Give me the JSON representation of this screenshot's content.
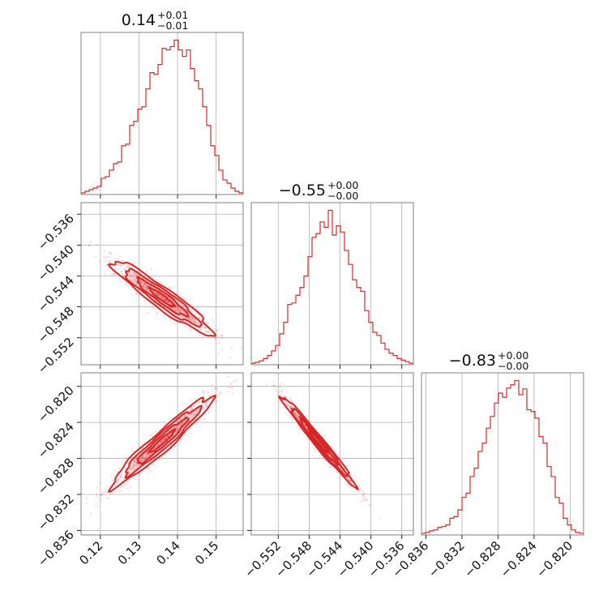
{
  "color": "#d62728",
  "titles": [
    {
      "value": "0.14",
      "upper": "+0.01",
      "lower": "−0.01"
    },
    {
      "value": "−0.55",
      "upper": "+0.00",
      "lower": "−0.00"
    },
    {
      "value": "−0.83",
      "upper": "+0.00",
      "lower": "−0.00"
    }
  ],
  "chart_data": {
    "type": "corner",
    "parameters": [
      {
        "range": [
          0.115,
          0.157
        ],
        "ticks": [
          0.12,
          0.13,
          0.14,
          0.15
        ],
        "tick_labels": [
          "0.12",
          "0.13",
          "0.14",
          "0.15"
        ],
        "mean": 0.136,
        "sd": 0.0065
      },
      {
        "range": [
          -0.5555,
          -0.5345
        ],
        "ticks": [
          -0.552,
          -0.548,
          -0.544,
          -0.54,
          -0.536
        ],
        "tick_labels": [
          "−0.552",
          "−0.548",
          "−0.544",
          "−0.540",
          "−0.536"
        ],
        "mean": -0.5468,
        "sd": 0.0024
      },
      {
        "range": [
          -0.8365,
          -0.8185
        ],
        "ticks": [
          -0.836,
          -0.832,
          -0.828,
          -0.824,
          -0.82
        ],
        "tick_labels": [
          "−0.836",
          "−0.832",
          "−0.828",
          "−0.824",
          "−0.820"
        ],
        "mean": -0.8261,
        "sd": 0.0025
      }
    ],
    "histograms": [
      {
        "bins": 40,
        "counts": [
          2,
          4,
          6,
          8,
          10,
          20,
          22,
          30,
          38,
          40,
          60,
          62,
          85,
          90,
          105,
          108,
          130,
          150,
          148,
          160,
          180,
          178,
          182,
          190,
          178,
          170,
          178,
          155,
          140,
          130,
          108,
          85,
          60,
          48,
          30,
          18,
          14,
          8,
          4,
          2
        ]
      },
      {
        "bins": 40,
        "counts": [
          2,
          3,
          5,
          8,
          12,
          18,
          25,
          40,
          55,
          78,
          80,
          90,
          100,
          115,
          140,
          165,
          170,
          185,
          178,
          200,
          168,
          180,
          172,
          148,
          130,
          110,
          100,
          95,
          70,
          55,
          42,
          38,
          28,
          20,
          15,
          12,
          8,
          6,
          4,
          2
        ]
      },
      {
        "bins": 40,
        "counts": [
          2,
          3,
          5,
          6,
          9,
          10,
          12,
          20,
          22,
          30,
          45,
          50,
          70,
          80,
          100,
          110,
          128,
          142,
          158,
          170,
          165,
          176,
          180,
          185,
          168,
          175,
          150,
          148,
          140,
          118,
          110,
          82,
          70,
          45,
          38,
          20,
          12,
          6,
          3,
          2
        ]
      }
    ],
    "correlations": {
      "1,0": -0.94,
      "2,0": 0.96,
      "2,1": -0.985
    }
  }
}
